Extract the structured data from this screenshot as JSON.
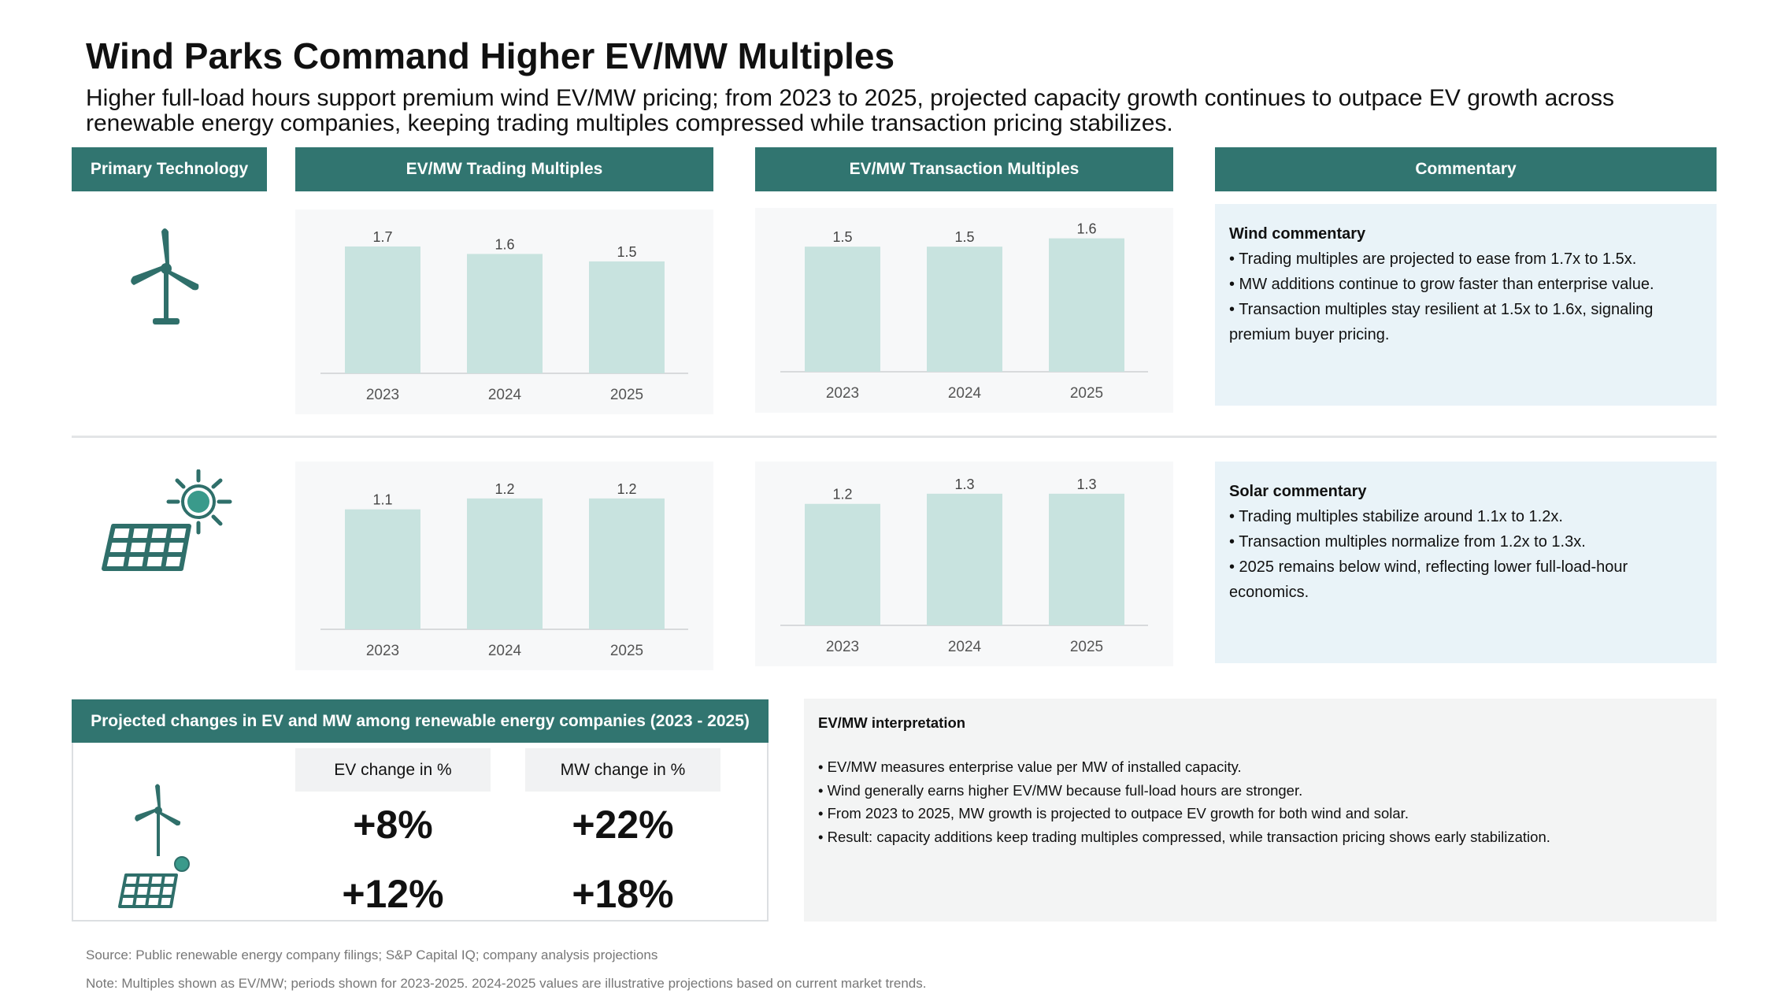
{
  "title": "Wind Parks Command Higher EV/MW Multiples",
  "subtitle": "Higher full-load hours support premium wind EV/MW pricing; from 2023 to 2025, projected capacity growth continues to outpace EV growth across renewable energy companies, keeping trading multiples compressed while transaction pricing stabilizes.",
  "headers": {
    "technology": "Primary Technology",
    "trading": "EV/MW Trading Multiples",
    "transaction": "EV/MW Transaction Multiples",
    "commentary": "Commentary"
  },
  "icons": {
    "wind": "wind-turbine-icon",
    "solar": "solar-panel-sun-icon"
  },
  "colors": {
    "header": "#317570",
    "bar": "#c8e3df",
    "icon": "#2f6f6a",
    "commentary_bg": "#e9f3f8"
  },
  "chart_data": [
    {
      "id": "wind-trading",
      "type": "bar",
      "categories": [
        "2023",
        "2024",
        "2025"
      ],
      "values": [
        1.7,
        1.6,
        1.5
      ],
      "labels": [
        "1.7",
        "1.6",
        "1.5"
      ],
      "ylim": [
        0,
        1.9
      ]
    },
    {
      "id": "wind-transaction",
      "type": "bar",
      "categories": [
        "2023",
        "2024",
        "2025"
      ],
      "values": [
        1.5,
        1.5,
        1.6
      ],
      "labels": [
        "1.5",
        "1.5",
        "1.6"
      ],
      "ylim": [
        0,
        1.7
      ]
    },
    {
      "id": "solar-trading",
      "type": "bar",
      "categories": [
        "2023",
        "2024",
        "2025"
      ],
      "values": [
        1.1,
        1.2,
        1.2
      ],
      "labels": [
        "1.1",
        "1.2",
        "1.2"
      ],
      "ylim": [
        0,
        1.3
      ]
    },
    {
      "id": "solar-transaction",
      "type": "bar",
      "categories": [
        "2023",
        "2024",
        "2025"
      ],
      "values": [
        1.2,
        1.3,
        1.3
      ],
      "labels": [
        "1.2",
        "1.3",
        "1.3"
      ],
      "ylim": [
        0,
        1.4
      ]
    }
  ],
  "wind_commentary": {
    "heading": "Wind commentary",
    "bullets": [
      "• Trading multiples are projected to ease from 1.7x to 1.5x.",
      "• MW additions continue to grow faster than enterprise value.",
      "• Transaction multiples stay resilient at 1.5x to 1.6x, signaling premium buyer pricing."
    ]
  },
  "solar_commentary": {
    "heading": "Solar commentary",
    "bullets": [
      "• Trading multiples stabilize around 1.1x to 1.2x.",
      "• Transaction multiples normalize from 1.2x to 1.3x.",
      "• 2025 remains below wind, reflecting lower full-load-hour economics."
    ]
  },
  "projection": {
    "header": "Projected changes in EV and MW among renewable energy companies (2023 - 2025)",
    "ev_label": "EV change in %",
    "mw_label": "MW change in %",
    "wind_ev": "+8%",
    "wind_mw": "+22%",
    "solar_ev": "+12%",
    "solar_mw": "+18%"
  },
  "interpretation": {
    "heading": "EV/MW interpretation",
    "bullets": [
      "• EV/MW measures enterprise value per MW of installed capacity.",
      "• Wind generally earns higher EV/MW because full-load hours are stronger.",
      "• From 2023 to 2025, MW growth is projected to outpace EV growth for both wind and solar.",
      "• Result: capacity additions keep trading multiples compressed, while transaction pricing shows early stabilization."
    ]
  },
  "footer": {
    "source": "Source: Public renewable energy company filings; S&P Capital IQ; company analysis projections",
    "note": "Note: Multiples shown as EV/MW; periods shown for 2023-2025. 2024-2025 values are illustrative projections based on current market trends."
  }
}
